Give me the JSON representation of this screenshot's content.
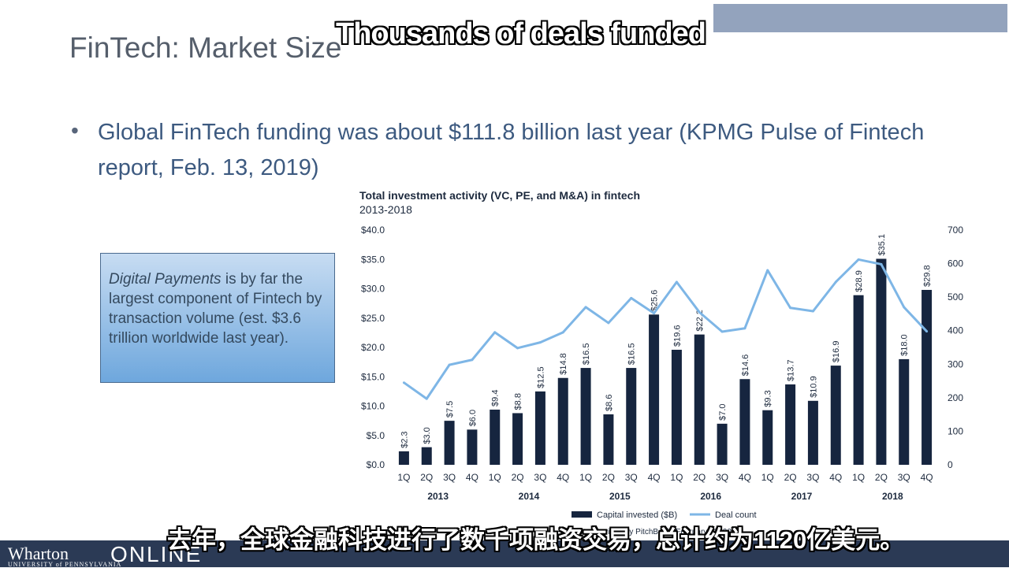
{
  "slide": {
    "title": "FinTech: Market Size",
    "bullet": "Global FinTech funding was about $111.8 billion last year (KPMG Pulse of Fintech report, Feb. 13, 2019)",
    "callout_italic": "Digital Payments",
    "callout_rest": " is by far the largest component of Fintech by transaction volume (est. $3.6 trillion worldwide last year)."
  },
  "captions": {
    "top": "Thousands of deals funded",
    "bottom": "去年，全球金融科技进行了数千项融资交易，总计约为1120亿美元。"
  },
  "footer": {
    "brand": "Wharton",
    "brand_sub": "UNIVERSITY of PENNSYLVANIA",
    "online": "ONLINE",
    "source": "ata provided by PitchBook) February 13, 2019"
  },
  "colors": {
    "bar": "#16253f",
    "line": "#7eb6e6",
    "topbar": "#93a3bd",
    "footer": "#2b3a55"
  },
  "chart_data": {
    "type": "bar",
    "title": "Total investment activity (VC, PE, and M&A) in fintech",
    "subtitle": "2013-2018",
    "categories": [
      "1Q",
      "2Q",
      "3Q",
      "4Q",
      "1Q",
      "2Q",
      "3Q",
      "4Q",
      "1Q",
      "2Q",
      "3Q",
      "4Q",
      "1Q",
      "2Q",
      "3Q",
      "4Q",
      "1Q",
      "2Q",
      "3Q",
      "4Q",
      "1Q",
      "2Q",
      "3Q",
      "4Q"
    ],
    "years": [
      "2013",
      "2014",
      "2015",
      "2016",
      "2017",
      "2018"
    ],
    "series": [
      {
        "name": "Capital invested ($B)",
        "type": "bar",
        "axis": "left",
        "values": [
          2.3,
          3.0,
          7.5,
          6.0,
          9.4,
          8.8,
          12.5,
          14.8,
          16.5,
          8.6,
          16.5,
          25.6,
          19.6,
          22.2,
          7.0,
          14.6,
          9.3,
          13.7,
          10.9,
          16.9,
          28.9,
          35.1,
          18.0,
          29.8
        ],
        "labels": [
          "$2.3",
          "$3.0",
          "$7.5",
          "$6.0",
          "$9.4",
          "$8.8",
          "$12.5",
          "$14.8",
          "$16.5",
          "$8.6",
          "$16.5",
          "$25.6",
          "$19.6",
          "$22.2",
          "$7.0",
          "$14.6",
          "$9.3",
          "$13.7",
          "$10.9",
          "$16.9",
          "$28.9",
          "$35.1",
          "$18.0",
          "$29.8"
        ]
      },
      {
        "name": "Deal count",
        "type": "line",
        "axis": "right",
        "values": [
          245,
          197,
          298,
          313,
          395,
          348,
          365,
          395,
          470,
          423,
          497,
          452,
          545,
          455,
          397,
          407,
          580,
          468,
          458,
          545,
          612,
          598,
          470,
          398
        ]
      }
    ],
    "ylim_left": [
      0,
      40
    ],
    "yticks_left": [
      "$0.0",
      "$5.0",
      "$10.0",
      "$15.0",
      "$20.0",
      "$25.0",
      "$30.0",
      "$35.0",
      "$40.0"
    ],
    "ylim_right": [
      0,
      700
    ],
    "yticks_right": [
      "0",
      "100",
      "200",
      "300",
      "400",
      "500",
      "600",
      "700"
    ],
    "legend_position": "bottom",
    "grid": false
  }
}
